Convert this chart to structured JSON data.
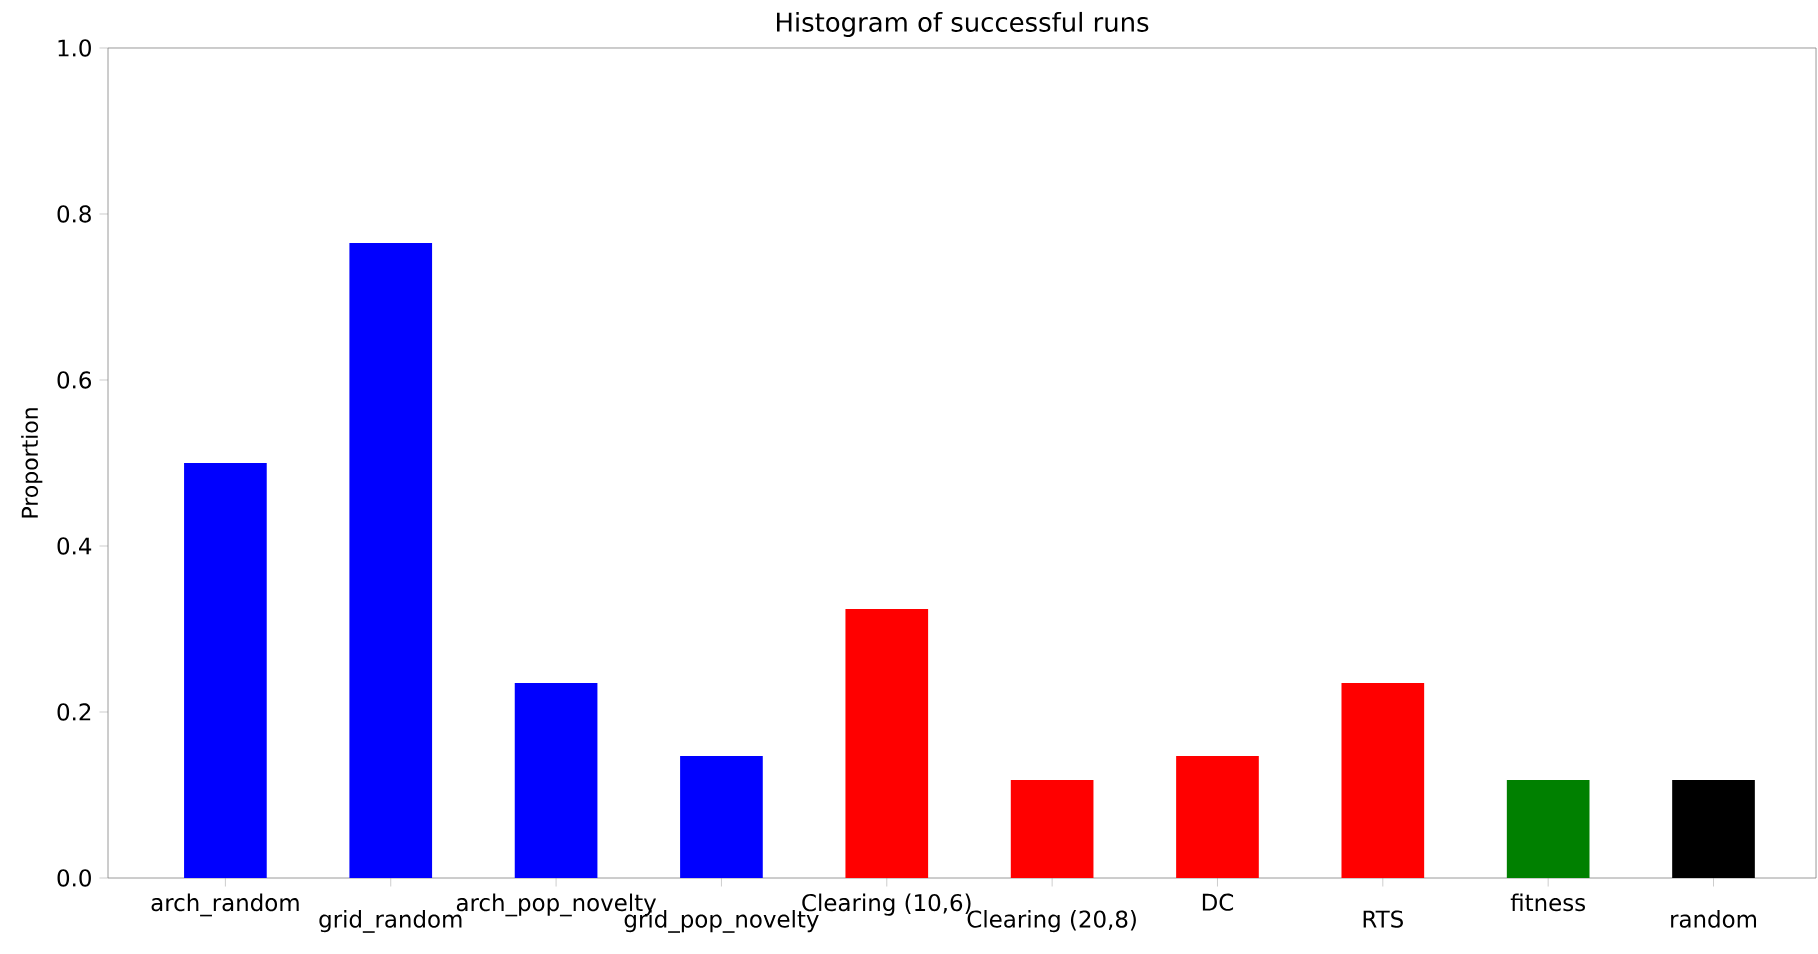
{
  "chart_data": {
    "type": "bar",
    "title": "Histogram of successful runs",
    "ylabel": "Proportion",
    "categories": [
      "arch_random",
      "grid_random",
      "arch_pop_novelty",
      "grid_pop_novelty",
      "Clearing (10,6)",
      "Clearing (20,8)",
      "DC",
      "RTS",
      "fitness",
      "random"
    ],
    "values": [
      0.5,
      0.765,
      0.235,
      0.147,
      0.324,
      0.118,
      0.147,
      0.235,
      0.118,
      0.118
    ],
    "colors": [
      "#0000ff",
      "#0000ff",
      "#0000ff",
      "#0000ff",
      "#ff0000",
      "#ff0000",
      "#ff0000",
      "#ff0000",
      "#008000",
      "#000000"
    ],
    "ylim": [
      0,
      1
    ],
    "yticks": [
      {
        "value": 0,
        "label": "0.0"
      },
      {
        "value": 0.2,
        "label": "0.2"
      },
      {
        "value": 0.4,
        "label": "0.4"
      },
      {
        "value": 0.6,
        "label": "0.6"
      },
      {
        "value": 0.8,
        "label": "0.8"
      },
      {
        "value": 1,
        "label": "1.0"
      }
    ],
    "grid": false
  }
}
